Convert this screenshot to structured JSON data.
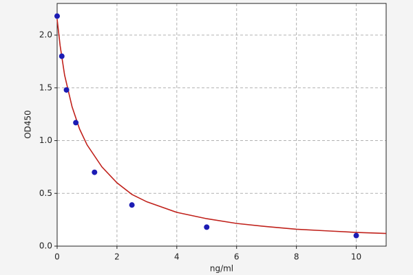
{
  "chart_data": {
    "type": "scatter",
    "xlabel": "ng/ml",
    "ylabel": "OD450",
    "xlim": [
      0,
      11
    ],
    "ylim": [
      0,
      2.3
    ],
    "xticks": [
      0,
      2,
      4,
      6,
      8,
      10
    ],
    "yticks": [
      {
        "value": 0,
        "label": "0.0"
      },
      0.5,
      {
        "value": 1,
        "label": "1.0"
      },
      1.5,
      {
        "value": 2,
        "label": "2.0"
      }
    ],
    "grid": true,
    "series": [
      {
        "mode": "markers",
        "color": "#1c1cb4",
        "x": [
          0,
          0.156,
          0.3125,
          0.625,
          1.25,
          2.5,
          5,
          10
        ],
        "values": [
          2.18,
          1.8,
          1.48,
          1.17,
          0.7,
          0.39,
          0.18,
          0.1
        ]
      },
      {
        "mode": "line",
        "color": "#c0201a",
        "x": [
          0,
          0.1,
          0.25,
          0.5,
          0.75,
          1,
          1.5,
          2,
          2.5,
          3,
          4,
          5,
          6,
          7,
          8,
          9,
          10,
          11
        ],
        "values": [
          2.15,
          1.9,
          1.62,
          1.32,
          1.11,
          0.96,
          0.75,
          0.6,
          0.49,
          0.42,
          0.32,
          0.26,
          0.215,
          0.185,
          0.16,
          0.145,
          0.13,
          0.12
        ]
      }
    ]
  }
}
